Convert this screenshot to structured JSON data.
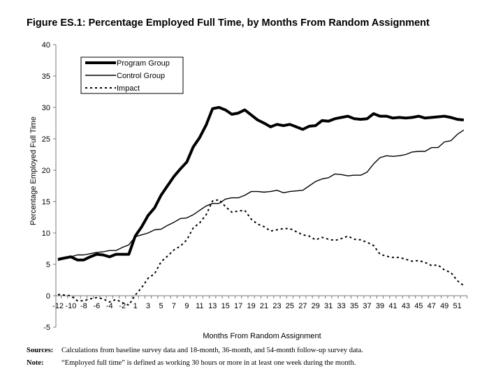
{
  "chart_data": {
    "type": "line",
    "title": "Figure ES.1: Percentage Employed Full Time, by Months From Random Assignment",
    "xlabel": "Months From Random Assignment",
    "ylabel": "Percentage Employed Full Time",
    "ylim": [
      -5,
      40
    ],
    "yticks": [
      "-5",
      "0",
      "5",
      "10",
      "15",
      "20",
      "25",
      "30",
      "35",
      "40"
    ],
    "x": [
      -12,
      -11,
      -10,
      -9,
      -8,
      -7,
      -6,
      -5,
      -4,
      -3,
      -2,
      -1,
      1,
      2,
      3,
      4,
      5,
      6,
      7,
      8,
      9,
      10,
      11,
      12,
      13,
      14,
      15,
      16,
      17,
      18,
      19,
      20,
      21,
      22,
      23,
      24,
      25,
      26,
      27,
      28,
      29,
      30,
      31,
      32,
      33,
      34,
      35,
      36,
      37,
      38,
      39,
      40,
      41,
      42,
      43,
      44,
      45,
      46,
      47,
      48,
      49,
      50,
      51,
      52
    ],
    "xtick_labels": [
      "-12",
      "-10",
      "-8",
      "-6",
      "-4",
      "-2",
      "1",
      "3",
      "5",
      "7",
      "9",
      "11",
      "13",
      "15",
      "17",
      "19",
      "21",
      "23",
      "25",
      "27",
      "29",
      "31",
      "33",
      "35",
      "37",
      "39",
      "41",
      "43",
      "45",
      "47",
      "49",
      "51"
    ],
    "legend_position": "top-left",
    "grid": false,
    "series": [
      {
        "name": "Program Group",
        "style": "thick",
        "values": [
          5.8,
          6.0,
          6.2,
          5.7,
          5.7,
          6.2,
          6.6,
          6.5,
          6.2,
          6.6,
          6.6,
          6.6,
          9.5,
          11.0,
          12.8,
          14.0,
          16.0,
          17.5,
          19.0,
          20.2,
          21.3,
          23.7,
          25.2,
          27.2,
          29.8,
          30.0,
          29.6,
          28.9,
          29.1,
          29.6,
          28.8,
          28.0,
          27.5,
          26.9,
          27.3,
          27.1,
          27.3,
          26.9,
          26.5,
          27.0,
          27.1,
          27.9,
          27.8,
          28.2,
          28.4,
          28.6,
          28.2,
          28.1,
          28.2,
          29.0,
          28.6,
          28.6,
          28.3,
          28.4,
          28.3,
          28.4,
          28.6,
          28.3,
          28.4,
          28.5,
          28.6,
          28.4,
          28.1,
          28.0
        ]
      },
      {
        "name": "Control Group",
        "style": "thin",
        "values": [
          5.6,
          5.9,
          6.2,
          6.5,
          6.5,
          6.7,
          6.9,
          7.0,
          7.2,
          7.2,
          7.7,
          8.1,
          9.4,
          9.7,
          10.0,
          10.5,
          10.6,
          11.2,
          11.7,
          12.3,
          12.4,
          12.9,
          13.6,
          14.3,
          14.7,
          14.7,
          15.4,
          15.6,
          15.6,
          16.0,
          16.6,
          16.6,
          16.5,
          16.6,
          16.8,
          16.4,
          16.6,
          16.7,
          16.8,
          17.5,
          18.2,
          18.6,
          18.8,
          19.4,
          19.3,
          19.1,
          19.2,
          19.2,
          19.7,
          21.0,
          22.0,
          22.3,
          22.2,
          22.3,
          22.5,
          22.9,
          23.0,
          23.0,
          23.6,
          23.6,
          24.5,
          24.7,
          25.7,
          26.4
        ]
      },
      {
        "name": "Impact",
        "style": "dashed",
        "values": [
          0.2,
          0.1,
          0.0,
          -0.8,
          -0.8,
          -0.5,
          -0.3,
          -0.5,
          -1.0,
          -0.6,
          -1.1,
          -1.5,
          0.1,
          1.3,
          2.8,
          3.5,
          5.4,
          6.3,
          7.3,
          7.9,
          8.9,
          10.8,
          11.6,
          12.9,
          15.1,
          15.3,
          14.2,
          13.3,
          13.5,
          13.6,
          12.2,
          11.4,
          11.0,
          10.3,
          10.5,
          10.7,
          10.7,
          10.2,
          9.7,
          9.5,
          8.9,
          9.3,
          9.0,
          8.8,
          9.1,
          9.5,
          9.0,
          8.9,
          8.5,
          8.0,
          6.6,
          6.3,
          6.1,
          6.1,
          5.8,
          5.5,
          5.6,
          5.3,
          4.8,
          4.9,
          4.1,
          3.7,
          2.4,
          1.6
        ]
      }
    ]
  },
  "notes": {
    "sources_label": "Sources:",
    "sources_text": "Calculations from baseline survey data and 18-month, 36-month, and 54-month follow-up survey data.",
    "note_label": "Note:",
    "note_text": "“Employed full time” is defined as working 30 hours or more in at least one week during the month."
  }
}
